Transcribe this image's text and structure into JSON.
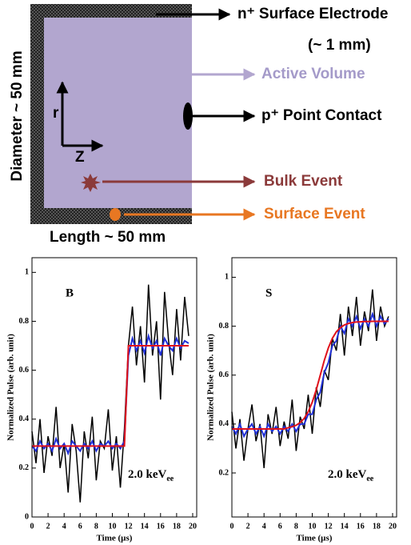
{
  "diagram": {
    "electrode": "n⁺ Surface Electrode",
    "electrode_size": "(~ 1 mm)",
    "active": "Active Volume",
    "contact": "p⁺ Point Contact",
    "bulk": "Bulk Event",
    "surface": "Surface Event",
    "length": "Length ~ 50 mm",
    "diameter": "Diameter ~ 50 mm",
    "r_axis": "r",
    "z_axis": "Z"
  },
  "chart_data": [
    {
      "type": "line",
      "annotation": "B",
      "energy": {
        "text": "2.0 keV",
        "sub": "ee"
      },
      "x_label": "Time (µs)",
      "y_label": "Normalized Pulse (arb. unit)",
      "x": [
        0,
        0.5,
        1,
        1.5,
        2,
        2.5,
        3,
        3.5,
        4,
        4.5,
        5,
        5.5,
        6,
        6.5,
        7,
        7.5,
        8,
        8.5,
        9,
        9.5,
        10,
        10.5,
        11,
        11.5,
        12,
        12.5,
        13,
        13.5,
        14,
        14.5,
        15,
        15.5,
        16,
        16.5,
        17,
        17.5,
        18,
        18.5,
        19,
        19.5
      ],
      "xlim": [
        0,
        20.5
      ],
      "xticks": [
        0,
        2,
        4,
        6,
        8,
        10,
        12,
        14,
        16,
        18,
        20
      ],
      "ylim": [
        0,
        1.06
      ],
      "yticks": [
        0,
        0.2,
        0.4,
        0.6,
        0.8,
        1
      ],
      "series": [
        {
          "color": "#000000",
          "values": [
            0.35,
            0.22,
            0.4,
            0.18,
            0.33,
            0.25,
            0.45,
            0.2,
            0.3,
            0.1,
            0.38,
            0.27,
            0.06,
            0.35,
            0.24,
            0.41,
            0.15,
            0.31,
            0.28,
            0.44,
            0.19,
            0.33,
            0.12,
            0.36,
            0.7,
            0.86,
            0.62,
            0.78,
            0.55,
            0.95,
            0.66,
            0.8,
            0.48,
            0.92,
            0.72,
            0.58,
            0.85,
            0.64,
            0.9,
            0.74
          ]
        },
        {
          "color": "#1f2fd6",
          "values": [
            0.29,
            0.27,
            0.31,
            0.28,
            0.3,
            0.27,
            0.32,
            0.28,
            0.3,
            0.26,
            0.31,
            0.29,
            0.27,
            0.3,
            0.28,
            0.31,
            0.27,
            0.3,
            0.29,
            0.31,
            0.28,
            0.3,
            0.28,
            0.31,
            0.66,
            0.73,
            0.68,
            0.72,
            0.67,
            0.74,
            0.69,
            0.72,
            0.66,
            0.73,
            0.7,
            0.68,
            0.73,
            0.69,
            0.72,
            0.71
          ]
        },
        {
          "color": "#e0101a",
          "values": [
            0.29,
            0.29,
            0.29,
            0.29,
            0.29,
            0.29,
            0.29,
            0.29,
            0.29,
            0.29,
            0.29,
            0.29,
            0.29,
            0.29,
            0.29,
            0.29,
            0.29,
            0.29,
            0.29,
            0.29,
            0.29,
            0.29,
            0.29,
            0.29,
            0.7,
            0.7,
            0.7,
            0.7,
            0.7,
            0.7,
            0.7,
            0.7,
            0.7,
            0.7,
            0.7,
            0.7,
            0.7,
            0.7,
            0.7,
            0.7
          ]
        }
      ]
    },
    {
      "type": "line",
      "annotation": "S",
      "energy": {
        "text": "2.0 keV",
        "sub": "ee"
      },
      "x_label": "Time (µs)",
      "y_label": "Normalized Pulse (arb. unit)",
      "x": [
        0,
        0.5,
        1,
        1.5,
        2,
        2.5,
        3,
        3.5,
        4,
        4.5,
        5,
        5.5,
        6,
        6.5,
        7,
        7.5,
        8,
        8.5,
        9,
        9.5,
        10,
        10.5,
        11,
        11.5,
        12,
        12.5,
        13,
        13.5,
        14,
        14.5,
        15,
        15.5,
        16,
        16.5,
        17,
        17.5,
        18,
        18.5,
        19,
        19.5
      ],
      "xlim": [
        0,
        20.5
      ],
      "xticks": [
        0,
        2,
        4,
        6,
        8,
        10,
        12,
        14,
        16,
        18,
        20
      ],
      "ylim": [
        0.02,
        1.08
      ],
      "yticks": [
        0.2,
        0.4,
        0.6,
        0.8,
        1
      ],
      "series": [
        {
          "color": "#000000",
          "values": [
            0.45,
            0.3,
            0.42,
            0.25,
            0.38,
            0.48,
            0.33,
            0.4,
            0.22,
            0.44,
            0.36,
            0.47,
            0.31,
            0.41,
            0.34,
            0.5,
            0.29,
            0.43,
            0.38,
            0.52,
            0.36,
            0.55,
            0.47,
            0.62,
            0.58,
            0.75,
            0.7,
            0.85,
            0.68,
            0.88,
            0.76,
            0.92,
            0.72,
            0.86,
            0.78,
            0.95,
            0.74,
            0.88,
            0.8,
            0.84
          ]
        },
        {
          "color": "#1f2fd6",
          "values": [
            0.39,
            0.36,
            0.4,
            0.35,
            0.38,
            0.4,
            0.36,
            0.39,
            0.35,
            0.4,
            0.37,
            0.39,
            0.36,
            0.39,
            0.37,
            0.4,
            0.37,
            0.4,
            0.4,
            0.44,
            0.44,
            0.5,
            0.53,
            0.61,
            0.65,
            0.72,
            0.74,
            0.8,
            0.77,
            0.83,
            0.8,
            0.84,
            0.79,
            0.83,
            0.8,
            0.85,
            0.8,
            0.84,
            0.81,
            0.83
          ]
        },
        {
          "color": "#e0101a",
          "values": [
            0.38,
            0.38,
            0.38,
            0.38,
            0.38,
            0.38,
            0.38,
            0.38,
            0.38,
            0.38,
            0.38,
            0.38,
            0.38,
            0.38,
            0.385,
            0.389,
            0.395,
            0.406,
            0.423,
            0.45,
            0.489,
            0.54,
            0.6,
            0.66,
            0.711,
            0.75,
            0.777,
            0.794,
            0.805,
            0.811,
            0.815,
            0.817,
            0.818,
            0.819,
            0.819,
            0.82,
            0.82,
            0.82,
            0.82,
            0.82
          ]
        }
      ]
    }
  ]
}
